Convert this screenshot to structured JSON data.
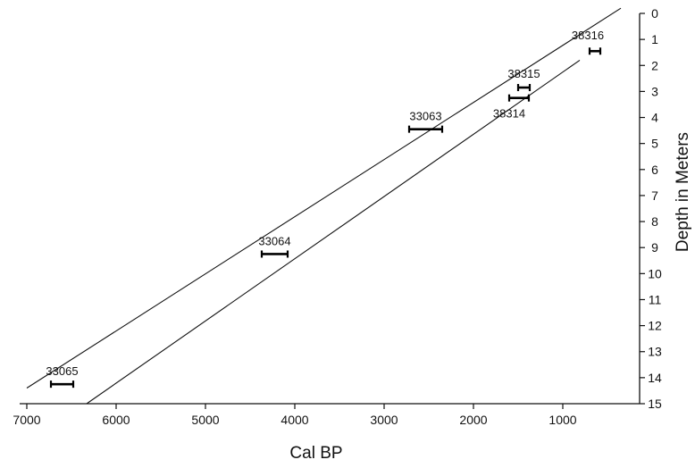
{
  "chart_data": {
    "type": "scatter",
    "title": "",
    "xlabel": "Cal  BP",
    "ylabel": "Depth in Meters",
    "x_reversed": true,
    "xlim": [
      7000,
      0
    ],
    "ylim": [
      15,
      0
    ],
    "x_ticks": [
      7000,
      6000,
      5000,
      4000,
      3000,
      2000,
      1000
    ],
    "y_ticks": [
      0,
      1,
      2,
      3,
      4,
      5,
      6,
      7,
      8,
      9,
      10,
      11,
      12,
      13,
      14,
      15
    ],
    "grid": false,
    "legend": "none",
    "error_bars": [
      {
        "label": "33065",
        "depth": 14.25,
        "age_old": 6730,
        "age_young": 6480
      },
      {
        "label": "33064",
        "depth": 9.25,
        "age_old": 4370,
        "age_young": 4080
      },
      {
        "label": "33063",
        "depth": 4.45,
        "age_old": 2720,
        "age_young": 2350
      },
      {
        "label": "38314",
        "depth": 3.25,
        "age_old": 1600,
        "age_young": 1380
      },
      {
        "label": "38315",
        "depth": 2.85,
        "age_old": 1500,
        "age_young": 1370
      },
      {
        "label": "38316",
        "depth": 1.45,
        "age_old": 700,
        "age_young": 580
      }
    ],
    "envelope_lines": [
      {
        "points": [
          [
            7000,
            14.4
          ],
          [
            350,
            -0.2
          ]
        ]
      },
      {
        "points": [
          [
            6330,
            15.0
          ],
          [
            810,
            1.8
          ]
        ]
      }
    ]
  }
}
